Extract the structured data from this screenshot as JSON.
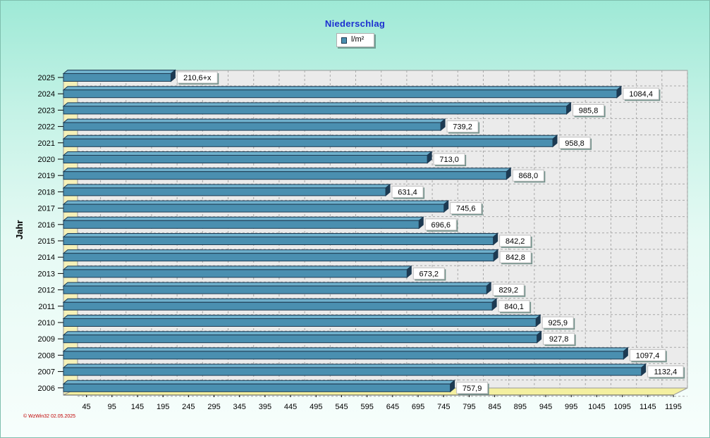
{
  "chart_data": {
    "type": "bar",
    "orientation": "horizontal",
    "title": "Niederschlag",
    "ylabel": "Jahr",
    "xlabel": "",
    "legend": {
      "entries": [
        "l/m²"
      ],
      "placement": "top-center"
    },
    "categories": [
      "2025",
      "2024",
      "2023",
      "2022",
      "2021",
      "2020",
      "2019",
      "2018",
      "2017",
      "2016",
      "2015",
      "2014",
      "2013",
      "2012",
      "2011",
      "2010",
      "2009",
      "2008",
      "2007",
      "2006"
    ],
    "series": [
      {
        "name": "l/m²",
        "values": [
          210.6,
          1084.4,
          985.8,
          739.2,
          958.8,
          713.0,
          868.0,
          631.4,
          745.6,
          696.6,
          842.2,
          842.8,
          673.2,
          829.2,
          840.1,
          925.9,
          927.8,
          1097.4,
          1132.4,
          757.9
        ],
        "labels": [
          "210,6+x",
          "1084,4",
          "985,8",
          "739,2",
          "958,8",
          "713,0",
          "868,0",
          "631,4",
          "745,6",
          "696,6",
          "842,2",
          "842,8",
          "673,2",
          "829,2",
          "840,1",
          "925,9",
          "927,8",
          "1097,4",
          "1132,4",
          "757,9"
        ],
        "color": "#4a8fb0"
      }
    ],
    "xticks": [
      45,
      95,
      145,
      195,
      245,
      295,
      345,
      395,
      445,
      495,
      545,
      595,
      645,
      695,
      745,
      795,
      845,
      895,
      945,
      995,
      1045,
      1095,
      1145,
      1195
    ],
    "xlim": [
      0,
      1195
    ],
    "grid": true,
    "footer": "WzWin32  02.05.2025"
  },
  "colors": {
    "bar_face": "#4a8fb0",
    "bar_top": "#6fb0cc",
    "bar_edge": "#1d3a52",
    "floor": "#f4f0a0",
    "title": "#1c2fd0"
  }
}
